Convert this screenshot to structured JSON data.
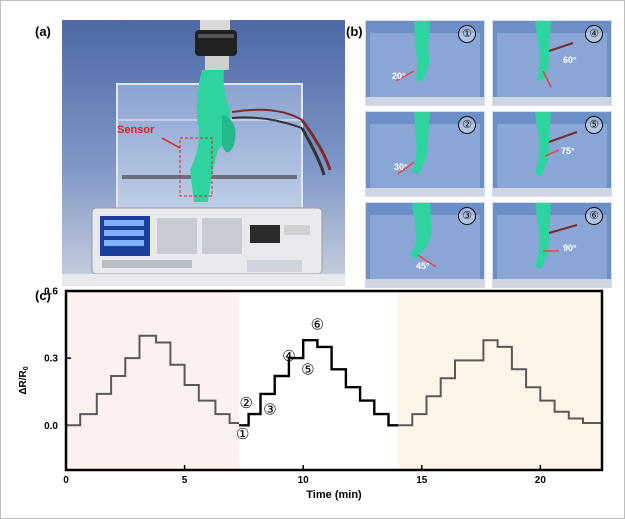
{
  "panel_labels": {
    "a": "(a)",
    "b": "(b)",
    "c": "(c)"
  },
  "photo_a": {
    "sensor_label": "Sensor"
  },
  "steps": [
    {
      "num": "①",
      "angle": "20°"
    },
    {
      "num": "②",
      "angle": "30°"
    },
    {
      "num": "③",
      "angle": "45°"
    },
    {
      "num": "④",
      "angle": "60°"
    },
    {
      "num": "⑤",
      "angle": "75°"
    },
    {
      "num": "⑥",
      "angle": "90°"
    }
  ],
  "colors": {
    "pink_region": "#fdf1ef",
    "cream_region": "#fdf6e8",
    "line_gray": "#595959",
    "line_black": "#000000"
  },
  "chart_data": {
    "type": "line",
    "xlabel": "Time (min)",
    "ylabel": "ΔR/R0",
    "xlim": [
      0,
      22.6
    ],
    "ylim": [
      -0.2,
      0.6
    ],
    "xticks": [
      0,
      5,
      10,
      15,
      20
    ],
    "yticks": [
      0.0,
      0.3,
      0.6
    ],
    "xticklabels": [
      "0",
      "5",
      "10",
      "15",
      "20"
    ],
    "yticklabels": [
      "0.0",
      "0.3",
      "0.6"
    ],
    "shaded_regions": [
      {
        "x": [
          0,
          7.3
        ],
        "color": "pink"
      },
      {
        "x": [
          14.0,
          22.6
        ],
        "color": "cream"
      }
    ],
    "series": [
      {
        "x": [
          0,
          0.6,
          0.6,
          1.3,
          1.3,
          1.9,
          1.9,
          2.5,
          2.5,
          3.1,
          3.1,
          3.8,
          3.8,
          4.4,
          4.4,
          5.0,
          5.0,
          5.6,
          5.6,
          6.3,
          6.3,
          6.9,
          6.9,
          7.3
        ],
        "y": [
          0.0,
          0.0,
          0.05,
          0.05,
          0.14,
          0.14,
          0.22,
          0.22,
          0.3,
          0.3,
          0.4,
          0.4,
          0.37,
          0.37,
          0.27,
          0.27,
          0.18,
          0.18,
          0.11,
          0.11,
          0.05,
          0.05,
          0.01,
          0.01
        ],
        "color": "#595959"
      },
      {
        "x": [
          7.3,
          7.7,
          7.7,
          8.2,
          8.2,
          8.8,
          8.8,
          9.4,
          9.4,
          10.0,
          10.0,
          10.6,
          10.6,
          11.2,
          11.2,
          11.8,
          11.8,
          12.4,
          12.4,
          13.0,
          13.0,
          13.6,
          13.6,
          14.0
        ],
        "y": [
          0.0,
          0.0,
          0.05,
          0.05,
          0.14,
          0.14,
          0.22,
          0.22,
          0.3,
          0.3,
          0.38,
          0.38,
          0.35,
          0.35,
          0.25,
          0.25,
          0.17,
          0.17,
          0.11,
          0.11,
          0.05,
          0.05,
          0.0,
          0.0
        ],
        "color": "#000000"
      },
      {
        "x": [
          14.0,
          14.6,
          14.6,
          15.2,
          15.2,
          15.8,
          15.8,
          16.4,
          16.4,
          17.0,
          17.0,
          17.6,
          17.6,
          18.2,
          18.2,
          18.8,
          18.8,
          19.4,
          19.4,
          20.0,
          20.0,
          20.6,
          20.6,
          21.2,
          21.2,
          21.8,
          21.8,
          22.6
        ],
        "y": [
          0.0,
          0.0,
          0.05,
          0.05,
          0.13,
          0.13,
          0.21,
          0.21,
          0.29,
          0.29,
          0.29,
          0.29,
          0.38,
          0.38,
          0.35,
          0.35,
          0.25,
          0.25,
          0.17,
          0.17,
          0.11,
          0.11,
          0.06,
          0.06,
          0.03,
          0.03,
          0.01,
          0.01
        ],
        "color": "#595959"
      }
    ],
    "annotations": [
      {
        "text": "①",
        "x": 7.45,
        "y": -0.04
      },
      {
        "text": "②",
        "x": 7.6,
        "y": 0.1
      },
      {
        "text": "③",
        "x": 8.6,
        "y": 0.07
      },
      {
        "text": "④",
        "x": 9.4,
        "y": 0.31
      },
      {
        "text": "⑤",
        "x": 10.2,
        "y": 0.25
      },
      {
        "text": "⑥",
        "x": 10.6,
        "y": 0.45
      }
    ]
  }
}
